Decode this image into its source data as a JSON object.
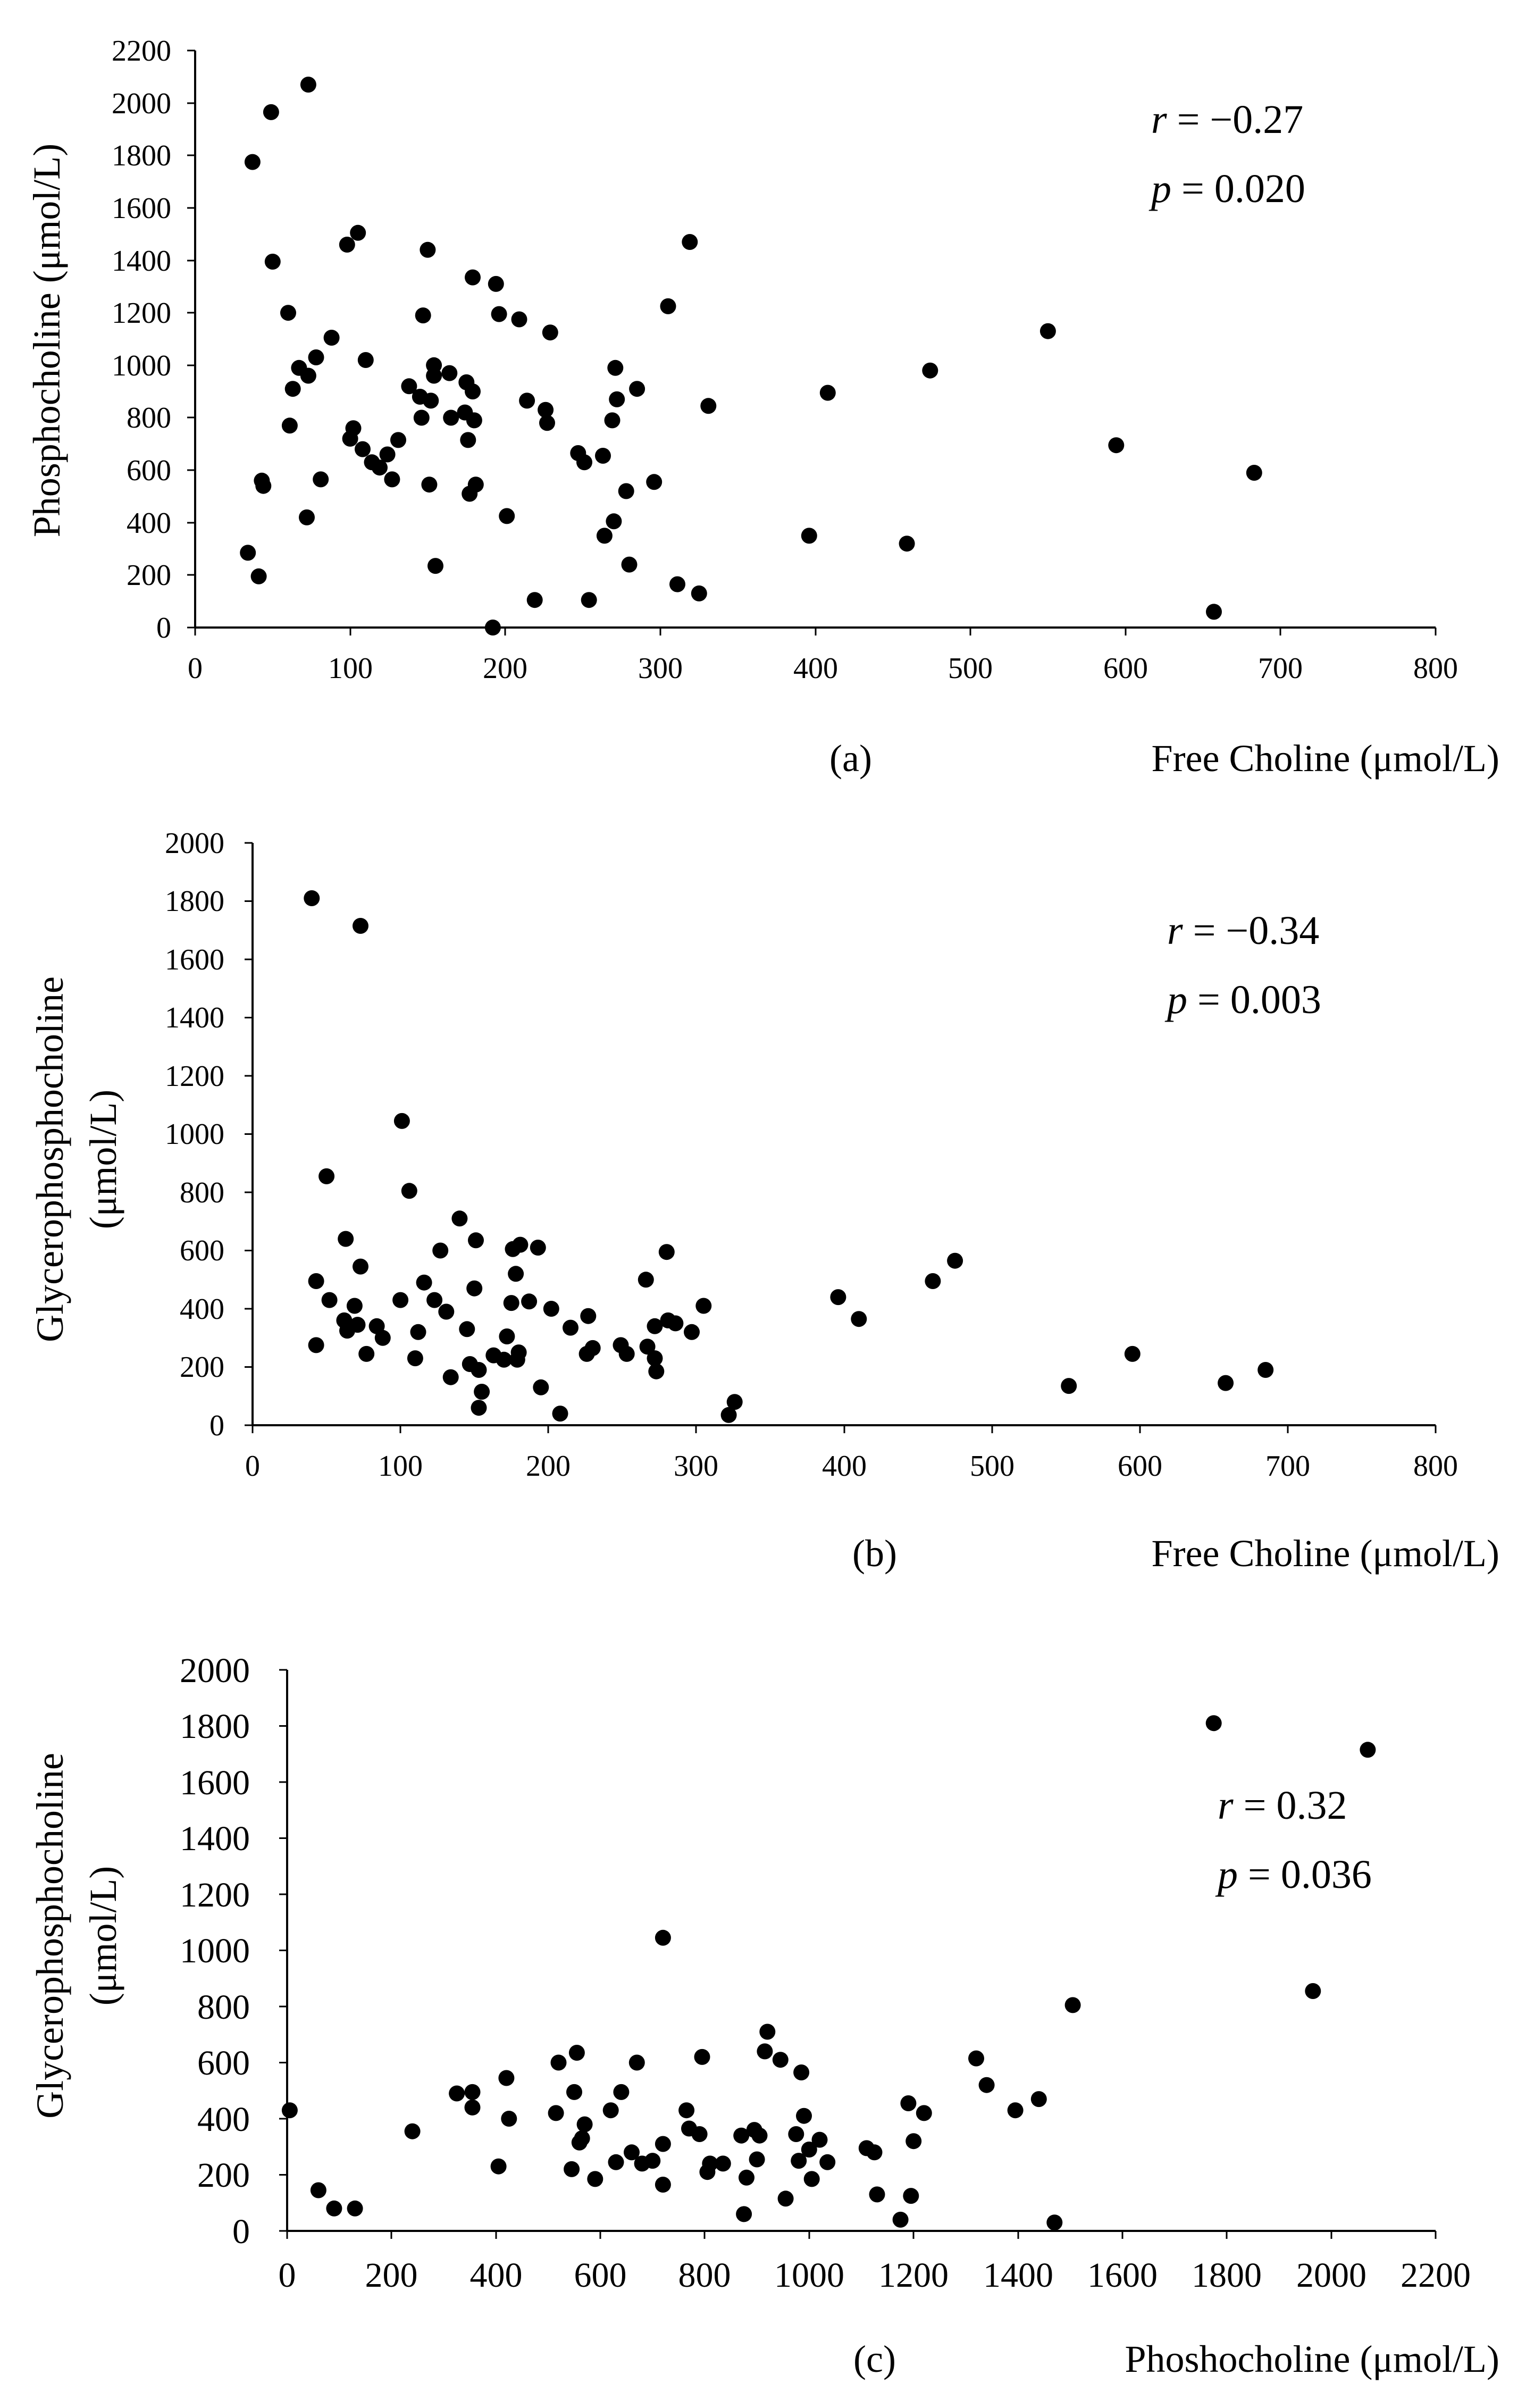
{
  "chart_data": [
    {
      "type": "scatter",
      "panel_label": "(a)",
      "xlabel": "Free Choline (μmol/L)",
      "ylabel": "Phosphocholine (μmol/L)",
      "xlim": [
        0,
        800
      ],
      "ylim": [
        0,
        2200
      ],
      "xticks": [
        0,
        100,
        200,
        300,
        400,
        500,
        600,
        700,
        800
      ],
      "yticks": [
        0,
        200,
        400,
        600,
        800,
        1000,
        1200,
        1400,
        1600,
        1800,
        2000,
        2200
      ],
      "stat": {
        "r_symbol": "r",
        "r_text": " = −0.27",
        "p_symbol": "p",
        "p_text": " = 0.020"
      },
      "points": [
        [
          37,
          1775
        ],
        [
          49,
          1965
        ],
        [
          73,
          2070
        ],
        [
          34,
          285
        ],
        [
          41,
          195
        ],
        [
          43,
          560
        ],
        [
          44,
          540
        ],
        [
          50,
          1395
        ],
        [
          60,
          1200
        ],
        [
          61,
          770
        ],
        [
          63,
          910
        ],
        [
          67,
          990
        ],
        [
          72,
          420
        ],
        [
          73,
          960
        ],
        [
          78,
          1030
        ],
        [
          81,
          565
        ],
        [
          88,
          1105
        ],
        [
          98,
          1460
        ],
        [
          100,
          720
        ],
        [
          102,
          760
        ],
        [
          105,
          1505
        ],
        [
          108,
          680
        ],
        [
          110,
          1020
        ],
        [
          114,
          630
        ],
        [
          119,
          610
        ],
        [
          124,
          660
        ],
        [
          127,
          565
        ],
        [
          131,
          715
        ],
        [
          138,
          920
        ],
        [
          145,
          880
        ],
        [
          146,
          800
        ],
        [
          147,
          1190
        ],
        [
          150,
          1440
        ],
        [
          151,
          545
        ],
        [
          152,
          865
        ],
        [
          154,
          960
        ],
        [
          154,
          1000
        ],
        [
          155,
          235
        ],
        [
          164,
          970
        ],
        [
          165,
          800
        ],
        [
          174,
          820
        ],
        [
          175,
          935
        ],
        [
          176,
          715
        ],
        [
          177,
          510
        ],
        [
          179,
          1335
        ],
        [
          179,
          900
        ],
        [
          180,
          790
        ],
        [
          181,
          545
        ],
        [
          192,
          0
        ],
        [
          194,
          1310
        ],
        [
          196,
          1195
        ],
        [
          201,
          425
        ],
        [
          209,
          1175
        ],
        [
          214,
          865
        ],
        [
          219,
          105
        ],
        [
          226,
          830
        ],
        [
          227,
          780
        ],
        [
          229,
          1125
        ],
        [
          247,
          665
        ],
        [
          251,
          630
        ],
        [
          254,
          105
        ],
        [
          263,
          655
        ],
        [
          264,
          350
        ],
        [
          269,
          790
        ],
        [
          270,
          405
        ],
        [
          271,
          990
        ],
        [
          272,
          870
        ],
        [
          278,
          520
        ],
        [
          280,
          240
        ],
        [
          285,
          910
        ],
        [
          296,
          555
        ],
        [
          305,
          1225
        ],
        [
          311,
          165
        ],
        [
          319,
          1470
        ],
        [
          325,
          130
        ],
        [
          331,
          845
        ],
        [
          396,
          350
        ],
        [
          408,
          895
        ],
        [
          459,
          320
        ],
        [
          474,
          980
        ],
        [
          550,
          1130
        ],
        [
          594,
          695
        ],
        [
          657,
          60
        ],
        [
          683,
          590
        ]
      ]
    },
    {
      "type": "scatter",
      "panel_label": "(b)",
      "xlabel": "Free Choline (μmol/L)",
      "ylabel": [
        "Glycerophosphocholine",
        "(μmol/L)"
      ],
      "xlim": [
        0,
        800
      ],
      "ylim": [
        0,
        2000
      ],
      "xticks": [
        0,
        100,
        200,
        300,
        400,
        500,
        600,
        700,
        800
      ],
      "yticks": [
        0,
        200,
        400,
        600,
        800,
        1000,
        1200,
        1400,
        1600,
        1800,
        2000
      ],
      "stat": {
        "r_symbol": "r",
        "r_text": " = −0.34",
        "p_symbol": "p",
        "p_text": " = 0.003"
      },
      "points": [
        [
          40,
          1810
        ],
        [
          73,
          1715
        ],
        [
          43,
          495
        ],
        [
          43,
          275
        ],
        [
          50,
          855
        ],
        [
          52,
          430
        ],
        [
          62,
          360
        ],
        [
          63,
          640
        ],
        [
          64,
          325
        ],
        [
          69,
          410
        ],
        [
          71,
          345
        ],
        [
          73,
          545
        ],
        [
          77,
          245
        ],
        [
          84,
          340
        ],
        [
          88,
          300
        ],
        [
          100,
          430
        ],
        [
          101,
          1045
        ],
        [
          106,
          805
        ],
        [
          110,
          230
        ],
        [
          112,
          320
        ],
        [
          116,
          490
        ],
        [
          123,
          430
        ],
        [
          127,
          600
        ],
        [
          131,
          390
        ],
        [
          134,
          165
        ],
        [
          140,
          710
        ],
        [
          145,
          330
        ],
        [
          147,
          210
        ],
        [
          150,
          470
        ],
        [
          151,
          635
        ],
        [
          153,
          60
        ],
        [
          153,
          190
        ],
        [
          155,
          115
        ],
        [
          163,
          240
        ],
        [
          170,
          225
        ],
        [
          172,
          305
        ],
        [
          175,
          420
        ],
        [
          176,
          605
        ],
        [
          178,
          520
        ],
        [
          179,
          225
        ],
        [
          180,
          250
        ],
        [
          181,
          620
        ],
        [
          187,
          425
        ],
        [
          193,
          610
        ],
        [
          195,
          130
        ],
        [
          202,
          400
        ],
        [
          208,
          40
        ],
        [
          215,
          335
        ],
        [
          226,
          245
        ],
        [
          227,
          375
        ],
        [
          230,
          265
        ],
        [
          249,
          275
        ],
        [
          253,
          245
        ],
        [
          266,
          500
        ],
        [
          267,
          270
        ],
        [
          272,
          230
        ],
        [
          272,
          340
        ],
        [
          273,
          185
        ],
        [
          280,
          595
        ],
        [
          281,
          360
        ],
        [
          286,
          350
        ],
        [
          297,
          320
        ],
        [
          305,
          410
        ],
        [
          322,
          35
        ],
        [
          326,
          80
        ],
        [
          396,
          440
        ],
        [
          410,
          365
        ],
        [
          460,
          495
        ],
        [
          475,
          565
        ],
        [
          552,
          135
        ],
        [
          595,
          245
        ],
        [
          658,
          145
        ],
        [
          685,
          190
        ]
      ]
    },
    {
      "type": "scatter",
      "panel_label": "(c)",
      "xlabel": "Phoshocholine (μmol/L)",
      "ylabel": [
        "Glycerophosphocholine",
        "(μmol/L)"
      ],
      "xlim": [
        0,
        2200
      ],
      "ylim": [
        0,
        2000
      ],
      "xticks": [
        0,
        200,
        400,
        600,
        800,
        1000,
        1200,
        1400,
        1600,
        1800,
        2000,
        2200
      ],
      "yticks": [
        0,
        200,
        400,
        600,
        800,
        1000,
        1200,
        1400,
        1600,
        1800,
        2000
      ],
      "stat": {
        "r_symbol": "r",
        "r_text": " = 0.32",
        "p_symbol": "p",
        "p_text": " = 0.036"
      },
      "points": [
        [
          1775,
          1810
        ],
        [
          2070,
          1715
        ],
        [
          1965,
          855
        ],
        [
          1505,
          805
        ],
        [
          720,
          1045
        ],
        [
          5,
          430
        ],
        [
          60,
          145
        ],
        [
          90,
          80
        ],
        [
          130,
          80
        ],
        [
          240,
          355
        ],
        [
          325,
          490
        ],
        [
          355,
          495
        ],
        [
          355,
          440
        ],
        [
          405,
          230
        ],
        [
          420,
          545
        ],
        [
          425,
          400
        ],
        [
          515,
          420
        ],
        [
          520,
          600
        ],
        [
          545,
          220
        ],
        [
          550,
          495
        ],
        [
          555,
          635
        ],
        [
          560,
          315
        ],
        [
          565,
          330
        ],
        [
          570,
          380
        ],
        [
          590,
          185
        ],
        [
          620,
          430
        ],
        [
          630,
          245
        ],
        [
          640,
          495
        ],
        [
          660,
          280
        ],
        [
          670,
          600
        ],
        [
          680,
          240
        ],
        [
          700,
          250
        ],
        [
          720,
          310
        ],
        [
          720,
          165
        ],
        [
          765,
          430
        ],
        [
          770,
          365
        ],
        [
          790,
          345
        ],
        [
          795,
          620
        ],
        [
          805,
          210
        ],
        [
          810,
          240
        ],
        [
          835,
          240
        ],
        [
          870,
          340
        ],
        [
          875,
          60
        ],
        [
          880,
          190
        ],
        [
          895,
          360
        ],
        [
          900,
          255
        ],
        [
          905,
          340
        ],
        [
          915,
          640
        ],
        [
          920,
          710
        ],
        [
          945,
          610
        ],
        [
          955,
          115
        ],
        [
          975,
          345
        ],
        [
          980,
          250
        ],
        [
          985,
          565
        ],
        [
          990,
          410
        ],
        [
          1000,
          290
        ],
        [
          1005,
          185
        ],
        [
          1020,
          325
        ],
        [
          1035,
          245
        ],
        [
          1110,
          295
        ],
        [
          1125,
          280
        ],
        [
          1130,
          130
        ],
        [
          1175,
          40
        ],
        [
          1190,
          455
        ],
        [
          1195,
          125
        ],
        [
          1200,
          320
        ],
        [
          1220,
          420
        ],
        [
          1320,
          615
        ],
        [
          1340,
          520
        ],
        [
          1395,
          430
        ],
        [
          1440,
          470
        ],
        [
          1470,
          30
        ]
      ]
    }
  ]
}
